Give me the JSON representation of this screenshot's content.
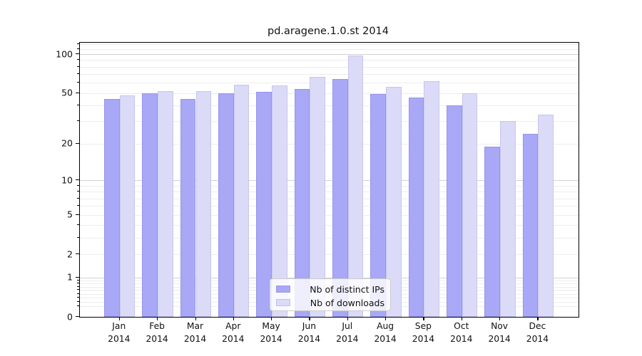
{
  "title": "pd.aragene.1.0.st 2014",
  "chart_data": {
    "type": "bar",
    "title": "pd.aragene.1.0.st 2014",
    "categories": [
      "Jan 2014",
      "Feb 2014",
      "Mar 2014",
      "Apr 2014",
      "May 2014",
      "Jun 2014",
      "Jul 2014",
      "Aug 2014",
      "Sep 2014",
      "Oct 2014",
      "Nov 2014",
      "Dec 2014"
    ],
    "series": [
      {
        "name": "Nb of distinct IPs",
        "color": "#a8a8f6",
        "edge_color": "rgba(110,110,210,0.30)",
        "values": [
          45,
          50,
          45,
          50,
          51,
          54,
          64,
          49,
          46,
          40,
          19,
          24
        ]
      },
      {
        "name": "Nb of downloads",
        "color": "#dbdbf8",
        "edge_color": "rgba(150,150,220,0.30)",
        "values": [
          48,
          52,
          52,
          58,
          57,
          67,
          97,
          56,
          62,
          50,
          30,
          34
        ]
      }
    ],
    "xlabel": "",
    "ylabel": "",
    "yscale": "log1p",
    "ylim": [
      0,
      123
    ],
    "yticks": [
      0,
      1,
      2,
      5,
      10,
      20,
      50,
      100
    ],
    "ytick_labels": [
      "0",
      "1",
      "2",
      "5",
      "10",
      "20",
      "50",
      "100"
    ],
    "grid": true,
    "grid_color_major": "#d2d2d2",
    "grid_color_minor": "#ededed",
    "legend_position": "lower center"
  }
}
